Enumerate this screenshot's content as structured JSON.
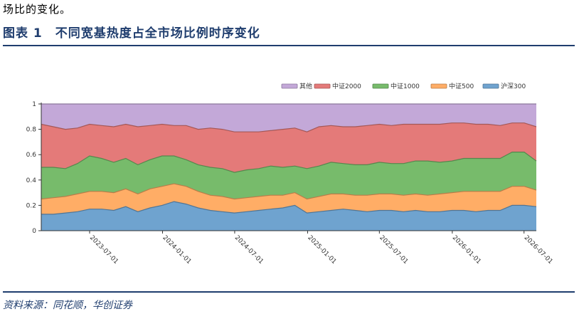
{
  "header": {
    "top_text": "场比的变化。",
    "figure_title": "图表 1　不同宽基热度占全市场比例时序变化"
  },
  "footer": {
    "source": "资料来源：同花顺，华创证券"
  },
  "chart_data": {
    "type": "area",
    "stacked": true,
    "title": "",
    "xlabel": "",
    "ylabel": "",
    "ylim": [
      0,
      1
    ],
    "y_ticks": [
      "0",
      "0.2",
      "0.4",
      "0.6",
      "0.8",
      "1"
    ],
    "x_tick_labels": [
      "2023-07-01",
      "2024-01-01",
      "2024-07-01",
      "2025-01-01",
      "2025-07-01",
      "2026-01-01",
      "2026-07-01"
    ],
    "legend_position": "top-right",
    "x": [
      "2023-03",
      "2023-04",
      "2023-05",
      "2023-06",
      "2023-07",
      "2023-08",
      "2023-09",
      "2023-10",
      "2023-11",
      "2023-12",
      "2024-01",
      "2024-02",
      "2024-03",
      "2024-04",
      "2024-05",
      "2024-06",
      "2024-07",
      "2024-08",
      "2024-09",
      "2024-10",
      "2024-11",
      "2024-12",
      "2025-01",
      "2025-02",
      "2025-03",
      "2025-04",
      "2025-05",
      "2025-06",
      "2025-07",
      "2025-08",
      "2025-09",
      "2025-10",
      "2025-11",
      "2025-12",
      "2026-01",
      "2026-02",
      "2026-03",
      "2026-04",
      "2026-05",
      "2026-06",
      "2026-07",
      "2026-08"
    ],
    "series": [
      {
        "name": "沪深300",
        "color": "#6fa3cf",
        "values": [
          0.13,
          0.13,
          0.14,
          0.15,
          0.17,
          0.17,
          0.16,
          0.19,
          0.15,
          0.18,
          0.2,
          0.23,
          0.21,
          0.18,
          0.16,
          0.15,
          0.14,
          0.15,
          0.16,
          0.17,
          0.18,
          0.2,
          0.14,
          0.15,
          0.16,
          0.17,
          0.16,
          0.15,
          0.16,
          0.16,
          0.15,
          0.16,
          0.15,
          0.15,
          0.16,
          0.16,
          0.15,
          0.16,
          0.16,
          0.2,
          0.2,
          0.19
        ]
      },
      {
        "name": "中证500",
        "color": "#ffad66",
        "values": [
          0.12,
          0.13,
          0.13,
          0.14,
          0.14,
          0.14,
          0.14,
          0.14,
          0.14,
          0.15,
          0.15,
          0.14,
          0.14,
          0.13,
          0.12,
          0.12,
          0.11,
          0.11,
          0.11,
          0.11,
          0.1,
          0.1,
          0.11,
          0.12,
          0.13,
          0.12,
          0.12,
          0.13,
          0.13,
          0.13,
          0.13,
          0.13,
          0.13,
          0.14,
          0.14,
          0.15,
          0.16,
          0.15,
          0.15,
          0.15,
          0.15,
          0.13
        ]
      },
      {
        "name": "中证1000",
        "color": "#77bb6b",
        "values": [
          0.25,
          0.24,
          0.22,
          0.24,
          0.28,
          0.26,
          0.24,
          0.24,
          0.23,
          0.23,
          0.24,
          0.22,
          0.21,
          0.21,
          0.22,
          0.22,
          0.21,
          0.22,
          0.22,
          0.23,
          0.22,
          0.21,
          0.24,
          0.24,
          0.25,
          0.24,
          0.24,
          0.24,
          0.25,
          0.24,
          0.25,
          0.26,
          0.27,
          0.25,
          0.25,
          0.26,
          0.26,
          0.26,
          0.26,
          0.27,
          0.27,
          0.23
        ]
      },
      {
        "name": "中证2000",
        "color": "#e47a79",
        "values": [
          0.34,
          0.32,
          0.31,
          0.28,
          0.25,
          0.26,
          0.28,
          0.27,
          0.3,
          0.27,
          0.25,
          0.24,
          0.27,
          0.28,
          0.31,
          0.31,
          0.32,
          0.3,
          0.29,
          0.28,
          0.3,
          0.3,
          0.29,
          0.31,
          0.29,
          0.29,
          0.3,
          0.31,
          0.3,
          0.3,
          0.31,
          0.29,
          0.29,
          0.3,
          0.3,
          0.28,
          0.27,
          0.27,
          0.26,
          0.23,
          0.23,
          0.27
        ]
      },
      {
        "name": "其他",
        "color": "#c3a8d8",
        "values": [
          0.16,
          0.18,
          0.2,
          0.19,
          0.16,
          0.17,
          0.18,
          0.16,
          0.18,
          0.17,
          0.16,
          0.17,
          0.17,
          0.2,
          0.19,
          0.2,
          0.22,
          0.22,
          0.22,
          0.21,
          0.2,
          0.19,
          0.22,
          0.18,
          0.17,
          0.18,
          0.18,
          0.17,
          0.16,
          0.17,
          0.16,
          0.16,
          0.16,
          0.16,
          0.15,
          0.15,
          0.16,
          0.16,
          0.17,
          0.15,
          0.15,
          0.18
        ]
      }
    ]
  }
}
